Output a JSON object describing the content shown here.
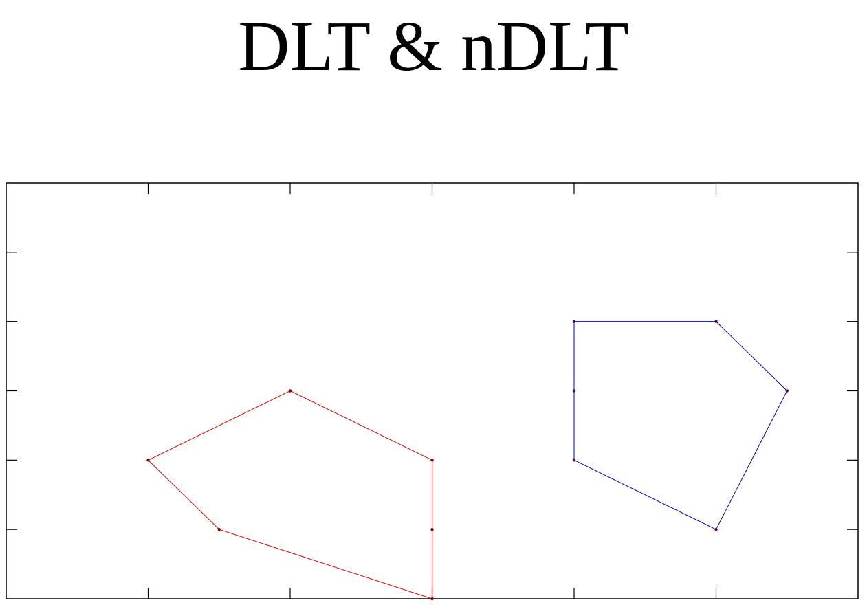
{
  "chart_data": {
    "type": "line",
    "title": "DLT & nDLT",
    "xlabel": "",
    "ylabel": "",
    "xlim": [
      0,
      12
    ],
    "ylim": [
      0,
      6
    ],
    "x_ticks": [
      0,
      2,
      4,
      6,
      8,
      10,
      12
    ],
    "y_ticks": [
      0,
      1,
      2,
      3,
      4,
      5,
      6
    ],
    "tick_labels_shown": false,
    "grid": false,
    "legend": "none",
    "series": [
      {
        "color": "#e00000",
        "marker_color": "#8b0000",
        "closed": false,
        "points": [
          [
            6,
            0
          ],
          [
            6,
            1
          ],
          [
            6,
            2
          ],
          [
            4,
            3
          ],
          [
            2,
            2
          ],
          [
            3,
            1
          ],
          [
            6,
            0
          ]
        ]
      },
      {
        "color": "#0000d0",
        "marker_color": "#5a0a3a",
        "closed": false,
        "points": [
          [
            8,
            2
          ],
          [
            8,
            3
          ],
          [
            8,
            4
          ],
          [
            10,
            4
          ],
          [
            11,
            3
          ],
          [
            10,
            1
          ],
          [
            8,
            2
          ]
        ]
      }
    ]
  }
}
